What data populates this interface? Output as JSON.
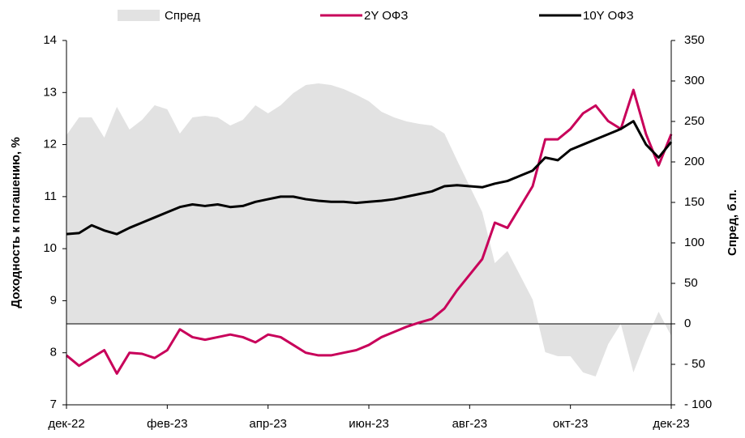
{
  "chart_data": {
    "type": "line",
    "categories": [
      "дек-22",
      null,
      null,
      null,
      null,
      null,
      null,
      null,
      "фев-23",
      null,
      null,
      null,
      null,
      null,
      null,
      null,
      "апр-23",
      null,
      null,
      null,
      null,
      null,
      null,
      null,
      "июн-23",
      null,
      null,
      null,
      null,
      null,
      null,
      null,
      "авг-23",
      null,
      null,
      null,
      null,
      null,
      null,
      null,
      "окт-23",
      null,
      null,
      null,
      null,
      null,
      null,
      null,
      "дек-23"
    ],
    "ylim": [
      7,
      14
    ],
    "yticks": [
      7,
      8,
      9,
      10,
      11,
      12,
      13,
      14
    ],
    "y2lim": [
      -100,
      350
    ],
    "y2ticks": [
      {
        "value": -100,
        "label": "- 100"
      },
      {
        "value": -50,
        "label": "- 50"
      },
      0,
      50,
      100,
      150,
      200,
      250,
      300,
      350
    ],
    "ylabel": "Доходность к погашению, %",
    "y2label": "Спред, б.п.",
    "legend": "top",
    "series": [
      {
        "name": "Спред",
        "color": "#e2e2e2",
        "axis": "y2",
        "kind": "area",
        "values": [
          233,
          255,
          255,
          230,
          268,
          240,
          252,
          270,
          265,
          235,
          255,
          257,
          255,
          245,
          252,
          270,
          260,
          270,
          285,
          295,
          297,
          295,
          290,
          283,
          275,
          262,
          255,
          250,
          247,
          245,
          235,
          202,
          170,
          138,
          75,
          90,
          60,
          30,
          -35,
          -40,
          -40,
          -60,
          -65,
          -25,
          0,
          -60,
          -20,
          15,
          -15
        ]
      },
      {
        "name": "2Y ОФЗ",
        "color": "#c8005a",
        "kind": "line",
        "values": [
          7.95,
          7.75,
          7.9,
          8.05,
          7.6,
          8.0,
          7.98,
          7.9,
          8.05,
          8.45,
          8.3,
          8.25,
          8.3,
          8.35,
          8.3,
          8.2,
          8.35,
          8.3,
          8.15,
          8.0,
          7.95,
          7.95,
          8.0,
          8.05,
          8.15,
          8.3,
          8.4,
          8.5,
          8.58,
          8.65,
          8.85,
          9.2,
          9.5,
          9.8,
          10.5,
          10.4,
          10.8,
          11.2,
          12.1,
          12.1,
          12.3,
          12.6,
          12.75,
          12.45,
          12.3,
          13.05,
          12.2,
          11.6,
          12.2
        ]
      },
      {
        "name": "10Y ОФЗ",
        "color": "#000000",
        "kind": "line",
        "values": [
          10.28,
          10.3,
          10.45,
          10.35,
          10.28,
          10.4,
          10.5,
          10.6,
          10.7,
          10.8,
          10.85,
          10.82,
          10.85,
          10.8,
          10.82,
          10.9,
          10.95,
          11.0,
          11.0,
          10.95,
          10.92,
          10.9,
          10.9,
          10.88,
          10.9,
          10.92,
          10.95,
          11.0,
          11.05,
          11.1,
          11.2,
          11.22,
          11.2,
          11.18,
          11.25,
          11.3,
          11.4,
          11.5,
          11.75,
          11.7,
          11.9,
          12.0,
          12.1,
          12.2,
          12.3,
          12.45,
          12.0,
          11.75,
          12.05
        ]
      }
    ]
  }
}
